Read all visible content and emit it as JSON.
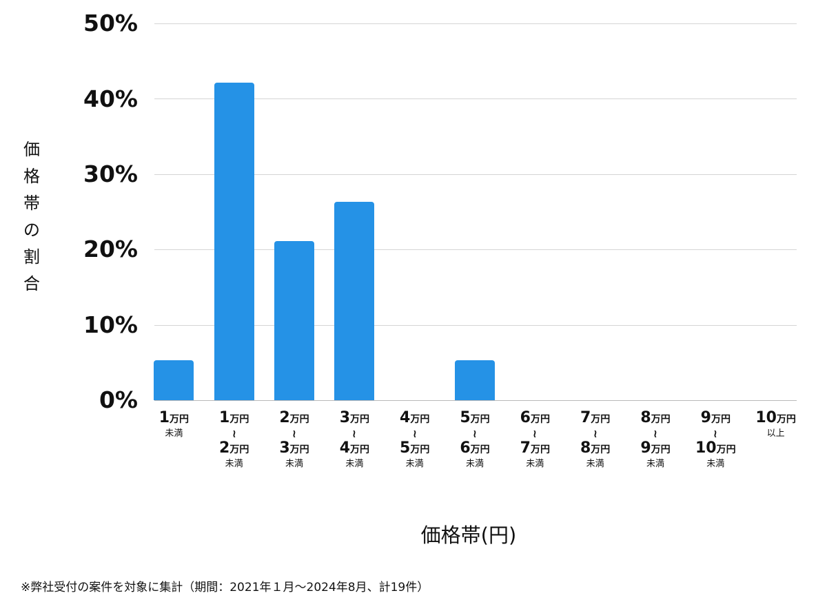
{
  "chart_data": {
    "type": "bar",
    "title": "",
    "xlabel": "価格帯(円)",
    "ylabel": "価格帯の割合",
    "ylim": [
      0,
      50
    ],
    "yticks": [
      "0%",
      "10%",
      "20%",
      "30%",
      "40%",
      "50%"
    ],
    "grid": true,
    "legend": null,
    "categories": [
      "1万円未満",
      "1万円〜2万円未満",
      "2万円〜3万円未満",
      "3万円〜4万円未満",
      "4万円〜5万円未満",
      "5万円〜6万円未満",
      "6万円〜7万円未満",
      "7万円〜8万円未満",
      "8万円〜9万円未満",
      "9万円〜10万円未満",
      "10万円以上"
    ],
    "values": [
      5.3,
      42.1,
      21.1,
      26.3,
      0,
      5.3,
      0,
      0,
      0,
      0,
      0
    ],
    "bar_color": "#2592e6",
    "annotations": [
      "※弊社受付の案件を対象に集計（期間：2021年１月〜2024年8月、計19件）"
    ]
  },
  "axis": {
    "ylabel_chars": [
      "価",
      "格",
      "帯",
      "の",
      "割",
      "合"
    ],
    "yticks": [
      "50%",
      "40%",
      "30%",
      "20%",
      "10%",
      "0%"
    ],
    "xlabel": "価格帯(円)"
  },
  "xticks": [
    {
      "from": "1",
      "unit": "万円",
      "to": "",
      "note": "未満"
    },
    {
      "from": "1",
      "unit": "万円",
      "to": "2",
      "note": "未満"
    },
    {
      "from": "2",
      "unit": "万円",
      "to": "3",
      "note": "未満"
    },
    {
      "from": "3",
      "unit": "万円",
      "to": "4",
      "note": "未満"
    },
    {
      "from": "4",
      "unit": "万円",
      "to": "5",
      "note": "未満"
    },
    {
      "from": "5",
      "unit": "万円",
      "to": "6",
      "note": "未満"
    },
    {
      "from": "6",
      "unit": "万円",
      "to": "7",
      "note": "未満"
    },
    {
      "from": "7",
      "unit": "万円",
      "to": "8",
      "note": "未満"
    },
    {
      "from": "8",
      "unit": "万円",
      "to": "9",
      "note": "未満"
    },
    {
      "from": "9",
      "unit": "万円",
      "to": "10",
      "note": "未満"
    },
    {
      "from": "10",
      "unit": "万円",
      "to": "",
      "note": "以上"
    }
  ],
  "tilde": "〜",
  "footnote": "※弊社受付の案件を対象に集計（期間：2021年１月〜2024年8月、計19件）"
}
